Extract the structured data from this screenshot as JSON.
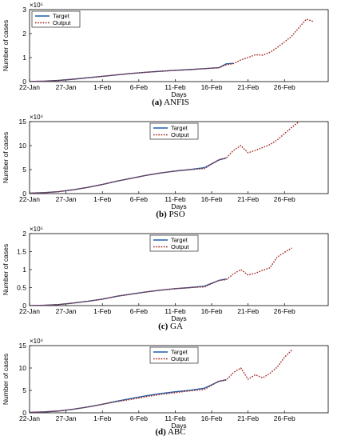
{
  "figure": {
    "panels": [
      {
        "letter": "(a)",
        "name": "ANFIS"
      },
      {
        "letter": "(b)",
        "name": "PSO"
      },
      {
        "letter": "(c)",
        "name": "GA"
      },
      {
        "letter": "(d)",
        "name": "ABC"
      }
    ]
  },
  "colors": {
    "target": "#1f5fa8",
    "output": "#a0201c",
    "axis": "#000000",
    "background": "#ffffff"
  },
  "chart_data": [
    {
      "type": "line",
      "caption": "ANFIS",
      "xlabel": "Days",
      "ylabel": "Number of cases",
      "exponent_label": "×10⁵",
      "x_ticks": [
        "22-Jan",
        "27-Jan",
        "1-Feb",
        "6-Feb",
        "11-Feb",
        "16-Feb",
        "21-Feb",
        "26-Feb"
      ],
      "ylim": [
        0,
        3
      ],
      "y_ticks": [
        "0",
        "1",
        "2",
        "3"
      ],
      "grid": false,
      "legend": "top-left",
      "x_days": [
        0,
        2,
        4,
        6,
        8,
        10,
        12,
        14,
        16,
        18,
        20,
        22,
        24,
        26,
        27,
        28,
        29,
        30,
        31,
        32,
        33,
        34,
        35,
        36,
        37,
        38,
        39
      ],
      "series": [
        {
          "name": "Target",
          "values": [
            0.004,
            0.02,
            0.05,
            0.1,
            0.16,
            0.22,
            0.28,
            0.34,
            0.39,
            0.43,
            0.47,
            0.5,
            0.54,
            0.58,
            0.74,
            0.76
          ]
        },
        {
          "name": "Output",
          "values": [
            0.004,
            0.02,
            0.05,
            0.1,
            0.16,
            0.22,
            0.28,
            0.34,
            0.39,
            0.43,
            0.47,
            0.5,
            0.54,
            0.58,
            0.7,
            0.75,
            0.9,
            1.0,
            1.12,
            1.1,
            1.22,
            1.42,
            1.65,
            1.9,
            2.25,
            2.6,
            2.5
          ]
        }
      ]
    },
    {
      "type": "line",
      "caption": "PSO",
      "xlabel": "Days",
      "ylabel": "Number of cases",
      "exponent_label": "×10⁴",
      "x_ticks": [
        "22-Jan",
        "27-Jan",
        "1-Feb",
        "6-Feb",
        "11-Feb",
        "16-Feb",
        "21-Feb",
        "26-Feb"
      ],
      "ylim": [
        0,
        15
      ],
      "y_ticks": [
        "0",
        "5",
        "10",
        "15"
      ],
      "grid": false,
      "legend": "top-center",
      "x_days": [
        0,
        2,
        4,
        6,
        8,
        10,
        12,
        14,
        16,
        18,
        20,
        22,
        24,
        26,
        27,
        28,
        29,
        30,
        31,
        32,
        33,
        34,
        35,
        36,
        37,
        38,
        39
      ],
      "series": [
        {
          "name": "Target",
          "values": [
            0.1,
            0.2,
            0.4,
            0.8,
            1.3,
            1.9,
            2.6,
            3.2,
            3.8,
            4.3,
            4.7,
            5.0,
            5.4,
            7.0,
            7.4
          ]
        },
        {
          "name": "Output",
          "values": [
            0.1,
            0.2,
            0.4,
            0.8,
            1.3,
            1.9,
            2.6,
            3.2,
            3.8,
            4.3,
            4.7,
            5.0,
            5.2,
            7.1,
            7.4,
            9.0,
            10.0,
            8.5,
            9.0,
            9.6,
            10.2,
            11.2,
            12.5,
            13.8,
            15.0
          ]
        }
      ]
    },
    {
      "type": "line",
      "caption": "GA",
      "xlabel": "Days",
      "ylabel": "Number of cases",
      "exponent_label": "×10⁵",
      "x_ticks": [
        "22-Jan",
        "27-Jan",
        "1-Feb",
        "6-Feb",
        "11-Feb",
        "16-Feb",
        "21-Feb",
        "26-Feb"
      ],
      "ylim": [
        0,
        2
      ],
      "y_ticks": [
        "0",
        "0.5",
        "1",
        "1.5",
        "2"
      ],
      "grid": false,
      "legend": "top-center",
      "x_days": [
        0,
        2,
        4,
        6,
        8,
        10,
        12,
        14,
        16,
        18,
        20,
        22,
        24,
        26,
        27,
        28,
        29,
        30,
        31,
        32,
        33,
        34,
        35,
        36,
        37,
        38,
        39
      ],
      "series": [
        {
          "name": "Target",
          "values": [
            0.002,
            0.01,
            0.03,
            0.07,
            0.12,
            0.18,
            0.26,
            0.32,
            0.38,
            0.43,
            0.47,
            0.5,
            0.54,
            0.7,
            0.74
          ]
        },
        {
          "name": "Output",
          "values": [
            0.002,
            0.01,
            0.03,
            0.07,
            0.12,
            0.18,
            0.26,
            0.32,
            0.38,
            0.43,
            0.47,
            0.5,
            0.52,
            0.7,
            0.72,
            0.88,
            1.0,
            0.85,
            0.9,
            0.98,
            1.05,
            1.35,
            1.48,
            1.6
          ]
        }
      ]
    },
    {
      "type": "line",
      "caption": "ABC",
      "xlabel": "Days",
      "ylabel": "Number of cases",
      "exponent_label": "×10⁴",
      "x_ticks": [
        "22-Jan",
        "27-Jan",
        "1-Feb",
        "6-Feb",
        "11-Feb",
        "16-Feb",
        "21-Feb",
        "26-Feb"
      ],
      "ylim": [
        0,
        15
      ],
      "y_ticks": [
        "0",
        "5",
        "10",
        "15"
      ],
      "grid": false,
      "legend": "top-center",
      "x_days": [
        0,
        2,
        4,
        6,
        8,
        10,
        12,
        14,
        16,
        18,
        20,
        22,
        24,
        26,
        27,
        28,
        29,
        30,
        31,
        32,
        33,
        34,
        35,
        36,
        37,
        38,
        39
      ],
      "series": [
        {
          "name": "Target",
          "values": [
            0.1,
            0.2,
            0.4,
            0.8,
            1.3,
            1.9,
            2.6,
            3.2,
            3.8,
            4.3,
            4.7,
            5.0,
            5.5,
            7.0,
            7.4
          ]
        },
        {
          "name": "Output",
          "values": [
            0.1,
            0.2,
            0.4,
            0.8,
            1.3,
            1.9,
            2.5,
            3.0,
            3.6,
            4.1,
            4.5,
            4.9,
            5.2,
            7.1,
            7.3,
            9.0,
            10.0,
            7.5,
            8.5,
            7.8,
            8.8,
            10.2,
            12.4,
            14.0
          ]
        }
      ]
    }
  ]
}
